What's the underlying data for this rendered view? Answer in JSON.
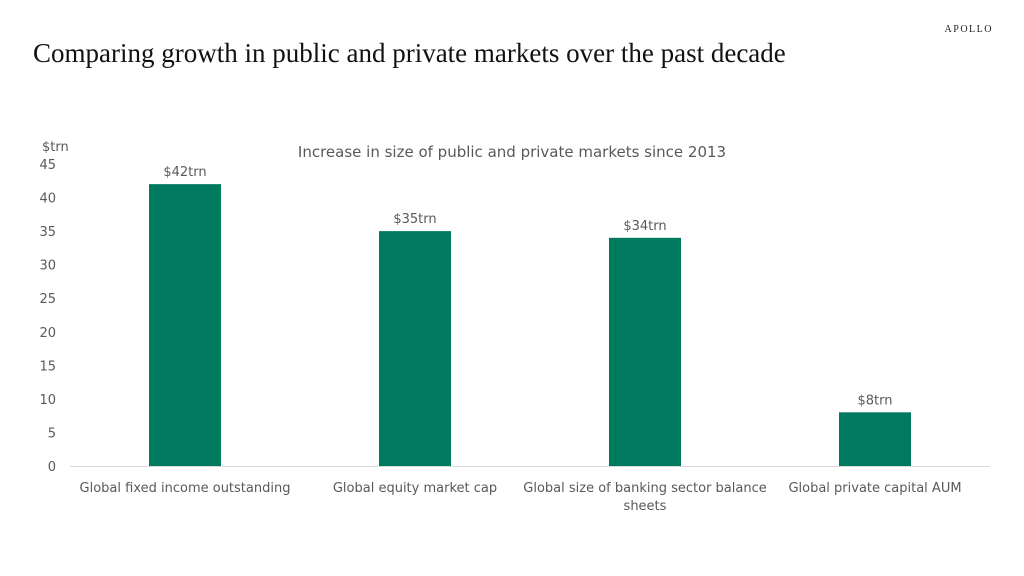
{
  "header": {
    "title": "Comparing growth in public and private markets over the past decade",
    "logo": "APOLLO"
  },
  "chart_data": {
    "type": "bar",
    "title": "Increase in size of public and private markets since 2013",
    "ylabel": "$trn",
    "xlabel": "",
    "categories": [
      "Global fixed income outstanding",
      "Global equity market cap",
      "Global size of banking sector balance sheets",
      "Global private capital AUM"
    ],
    "values": [
      42,
      35,
      34,
      8
    ],
    "data_labels": [
      "$42trn",
      "$35trn",
      "$34trn",
      "$8trn"
    ],
    "ylim": [
      0,
      45
    ],
    "yticks": [
      0,
      5,
      10,
      15,
      20,
      25,
      30,
      35,
      40,
      45
    ],
    "grid": false,
    "legend": "none",
    "bar_color": "#007A5E"
  }
}
